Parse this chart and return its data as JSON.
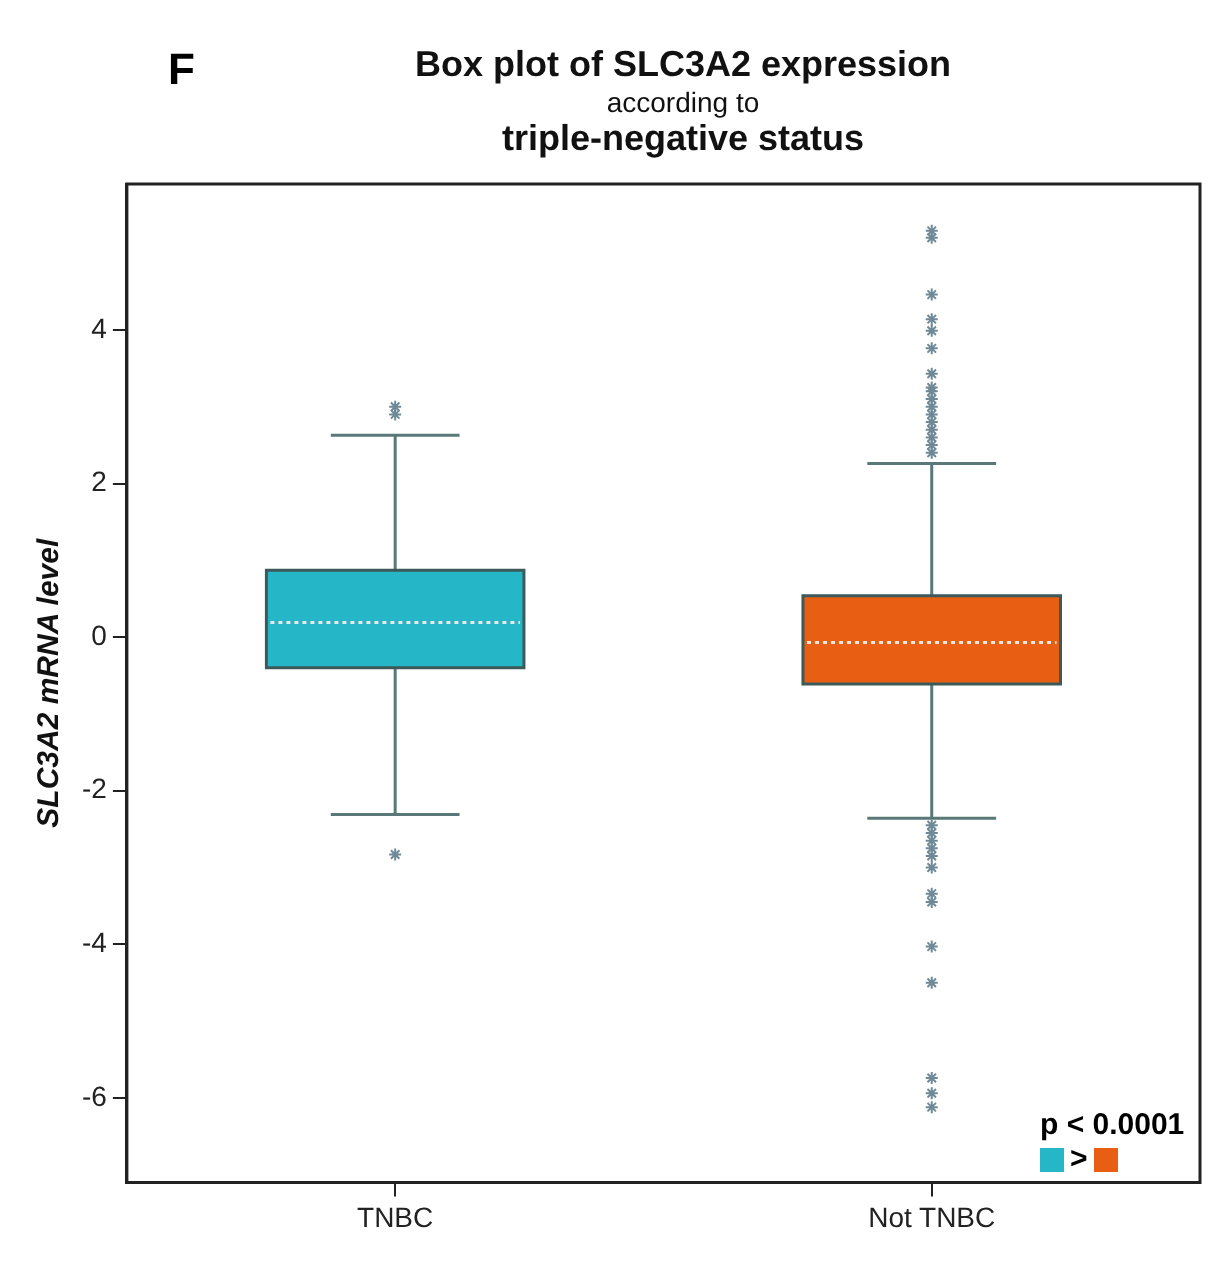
{
  "chart_data": {
    "type": "box",
    "title": "Box plot of SLC3A2 expression",
    "subtitle": "according to",
    "ylabel": "SLC3A2 mRNA level",
    "categories": [
      "TNBC",
      "Not TNBC"
    ],
    "colors": [
      "#25b6c8",
      "#e85e12"
    ],
    "boxes": [
      {
        "low": -2.31,
        "q1": -0.4,
        "median": 0.19,
        "q3": 0.87,
        "high": 2.63,
        "outliers": [
          2.9,
          3.0,
          -2.83
        ]
      },
      {
        "low": -2.36,
        "q1": -0.61,
        "median": -0.07,
        "q3": 0.54,
        "high": 2.26,
        "outliers": [
          5.29,
          5.2,
          4.46,
          4.14,
          3.99,
          3.76,
          3.43,
          3.25,
          3.2,
          3.1,
          3.0,
          2.9,
          2.8,
          2.7,
          2.6,
          2.5,
          2.4,
          -2.45,
          -2.55,
          -2.65,
          -2.75,
          -2.85,
          -3.0,
          -3.34,
          -3.45,
          -4.03,
          -4.5,
          -5.74,
          -5.94,
          -6.12
        ]
      }
    ],
    "ylim": [
      -7.1,
      5.9
    ],
    "yticks": [
      -6,
      -4,
      -2,
      0,
      2,
      4
    ],
    "marker": "star",
    "legend": false,
    "grid": false,
    "annotations": [
      "F",
      "triple-negative status",
      "p < 0.0001",
      ">"
    ]
  }
}
